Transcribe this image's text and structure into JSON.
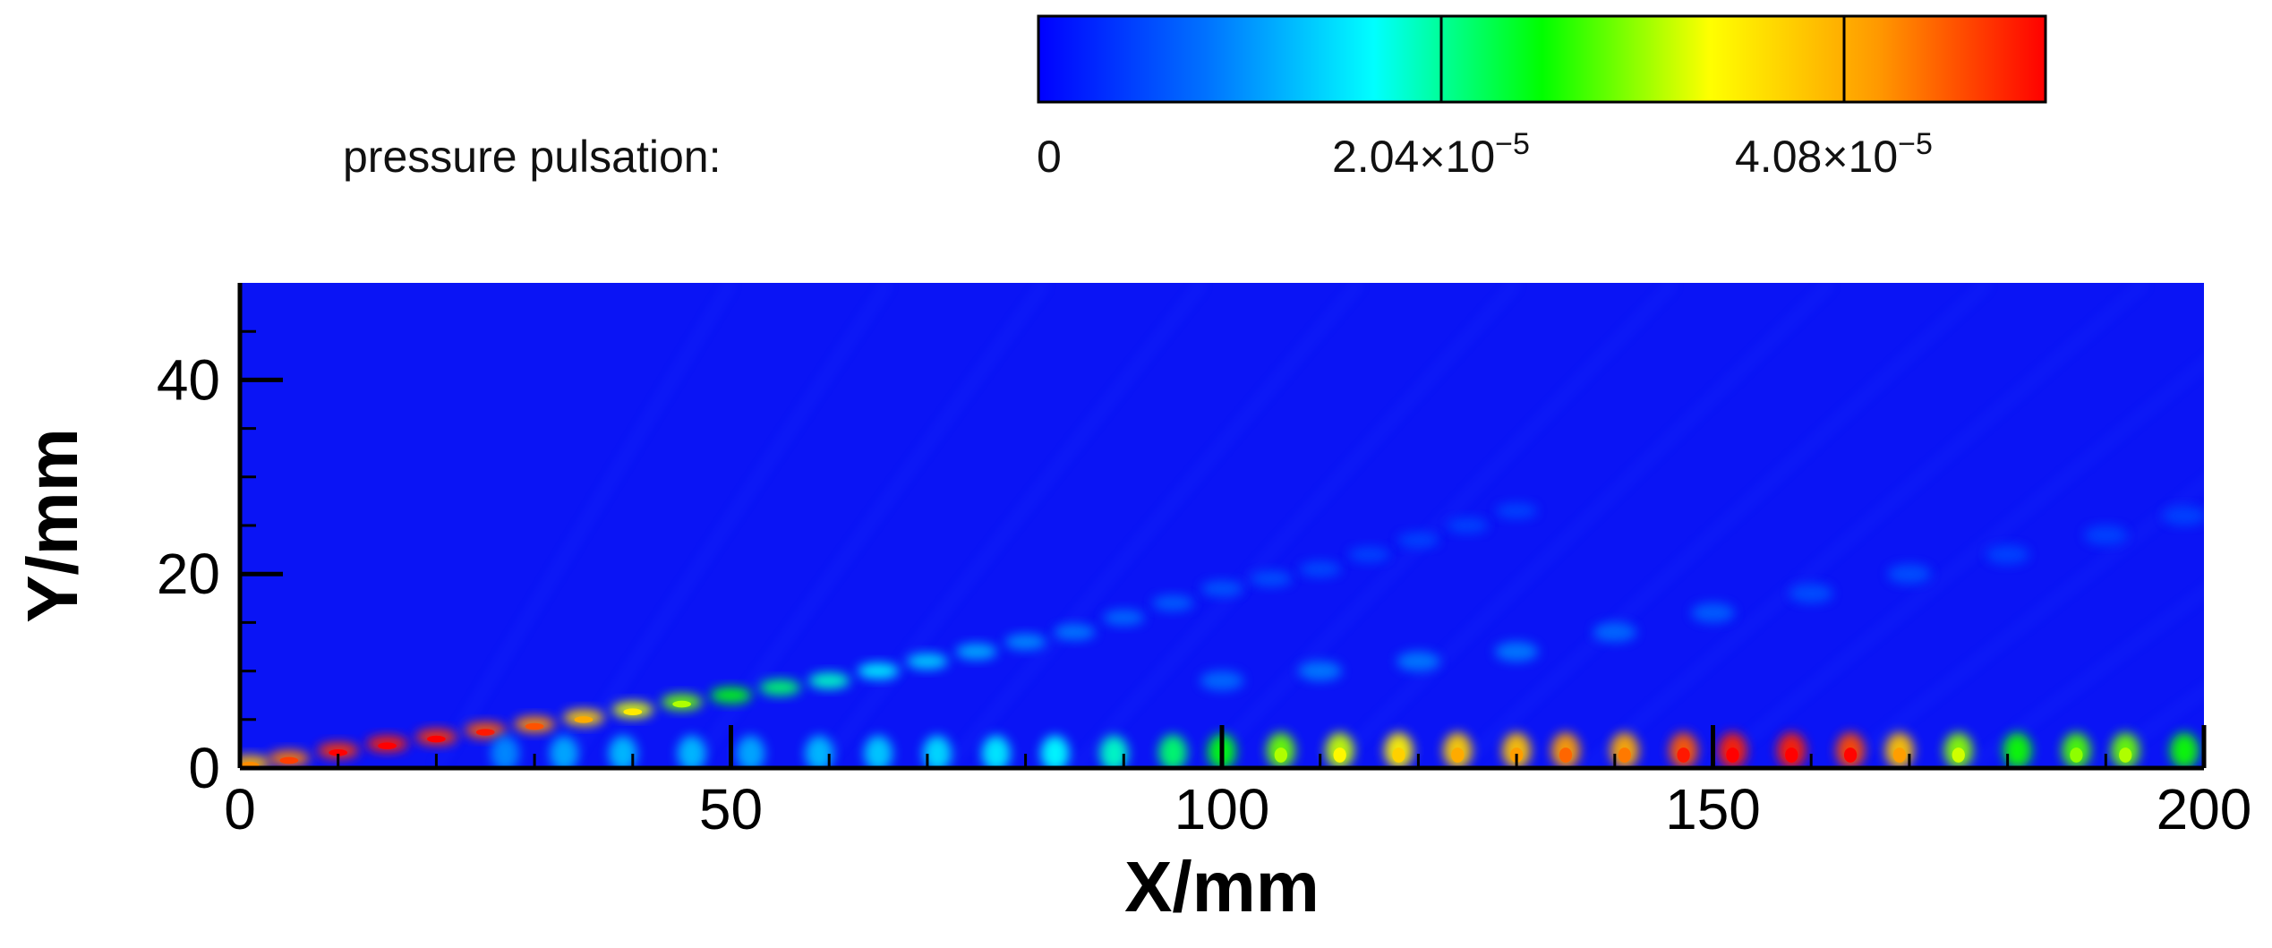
{
  "chart_data": {
    "type": "heatmap",
    "title": "",
    "xlabel": "X/mm",
    "ylabel": "Y/mm",
    "xlim": [
      0,
      200
    ],
    "ylim": [
      0,
      50
    ],
    "x_ticks": [
      0,
      50,
      100,
      150,
      200
    ],
    "x_tick_labels": [
      "0",
      "50",
      "100",
      "150",
      "200"
    ],
    "y_ticks": [
      0,
      20,
      40
    ],
    "y_tick_labels": [
      "0",
      "20",
      "40"
    ],
    "colorbar": {
      "label": "pressure pulsation:",
      "min": 0,
      "max": 5.1e-05,
      "ticks": [
        0,
        2.04e-05,
        4.08e-05
      ],
      "tick_labels": [
        "0",
        "2.04×10",
        "4.08×10"
      ],
      "tick_exponent": "−5",
      "colormap": [
        "#0000ff",
        "#0072ff",
        "#00ffff",
        "#00ff00",
        "#ffff00",
        "#ff9900",
        "#ff0000"
      ],
      "divider_values": [
        2.04e-05,
        4.08e-05
      ]
    },
    "field": {
      "background_value": 0,
      "background_color": "#0a14f5",
      "shear_layer": {
        "description": "oblique band of pressure pulsation cells rising from the wall",
        "points": [
          {
            "x": 1,
            "y": 0.5,
            "value": 4e-05
          },
          {
            "x": 5,
            "y": 1.0,
            "value": 4.4e-05
          },
          {
            "x": 10,
            "y": 1.8,
            "value": 4.8e-05
          },
          {
            "x": 15,
            "y": 2.5,
            "value": 4.9e-05
          },
          {
            "x": 20,
            "y": 3.2,
            "value": 4.8e-05
          },
          {
            "x": 25,
            "y": 3.9,
            "value": 4.6e-05
          },
          {
            "x": 30,
            "y": 4.5,
            "value": 4.3e-05
          },
          {
            "x": 35,
            "y": 5.2,
            "value": 3.8e-05
          },
          {
            "x": 40,
            "y": 6.0,
            "value": 3.3e-05
          },
          {
            "x": 45,
            "y": 6.8,
            "value": 2.9e-05
          },
          {
            "x": 50,
            "y": 7.5,
            "value": 2.5e-05
          },
          {
            "x": 55,
            "y": 8.3,
            "value": 2.2e-05
          },
          {
            "x": 60,
            "y": 9.0,
            "value": 1.9e-05
          },
          {
            "x": 65,
            "y": 10.0,
            "value": 1.6e-05
          },
          {
            "x": 70,
            "y": 11.0,
            "value": 1.4e-05
          },
          {
            "x": 75,
            "y": 12.0,
            "value": 1.2e-05
          },
          {
            "x": 80,
            "y": 13.0,
            "value": 1e-05
          },
          {
            "x": 85,
            "y": 14.0,
            "value": 9e-06
          },
          {
            "x": 90,
            "y": 15.5,
            "value": 8e-06
          },
          {
            "x": 95,
            "y": 17.0,
            "value": 7e-06
          },
          {
            "x": 100,
            "y": 18.5,
            "value": 6.5e-06
          },
          {
            "x": 105,
            "y": 19.5,
            "value": 6e-06
          },
          {
            "x": 110,
            "y": 20.5,
            "value": 5.5e-06
          },
          {
            "x": 115,
            "y": 22.0,
            "value": 5e-06
          },
          {
            "x": 120,
            "y": 23.5,
            "value": 5e-06
          },
          {
            "x": 125,
            "y": 25.0,
            "value": 5e-06
          },
          {
            "x": 130,
            "y": 26.5,
            "value": 5e-06
          }
        ]
      },
      "wall_hotspots": [
        {
          "x": 27,
          "y": 1.5,
          "value": 1e-05
        },
        {
          "x": 33,
          "y": 1.5,
          "value": 1.2e-05
        },
        {
          "x": 39,
          "y": 1.5,
          "value": 1.3e-05
        },
        {
          "x": 46,
          "y": 1.5,
          "value": 1.3e-05
        },
        {
          "x": 52,
          "y": 1.5,
          "value": 1.2e-05
        },
        {
          "x": 59,
          "y": 1.5,
          "value": 1.3e-05
        },
        {
          "x": 65,
          "y": 1.5,
          "value": 1.4e-05
        },
        {
          "x": 71,
          "y": 1.5,
          "value": 1.5e-05
        },
        {
          "x": 77,
          "y": 1.5,
          "value": 1.6e-05
        },
        {
          "x": 83,
          "y": 1.5,
          "value": 1.7e-05
        },
        {
          "x": 89,
          "y": 1.5,
          "value": 1.9e-05
        },
        {
          "x": 95,
          "y": 1.6,
          "value": 2.2e-05
        },
        {
          "x": 100,
          "y": 1.7,
          "value": 2.5e-05
        },
        {
          "x": 106,
          "y": 1.8,
          "value": 2.9e-05
        },
        {
          "x": 112,
          "y": 1.8,
          "value": 3.2e-05
        },
        {
          "x": 118,
          "y": 1.8,
          "value": 3.5e-05
        },
        {
          "x": 124,
          "y": 1.8,
          "value": 3.8e-05
        },
        {
          "x": 130,
          "y": 1.8,
          "value": 3.9e-05
        },
        {
          "x": 135,
          "y": 1.8,
          "value": 4.2e-05
        },
        {
          "x": 141,
          "y": 1.8,
          "value": 4.1e-05
        },
        {
          "x": 147,
          "y": 1.8,
          "value": 4.6e-05
        },
        {
          "x": 152,
          "y": 1.8,
          "value": 4.9e-05
        },
        {
          "x": 158,
          "y": 1.8,
          "value": 4.9e-05
        },
        {
          "x": 164,
          "y": 1.8,
          "value": 4.7e-05
        },
        {
          "x": 169,
          "y": 1.8,
          "value": 3.9e-05
        },
        {
          "x": 175,
          "y": 1.8,
          "value": 3e-05
        },
        {
          "x": 181,
          "y": 1.8,
          "value": 2.6e-05
        },
        {
          "x": 187,
          "y": 1.8,
          "value": 2.8e-05
        },
        {
          "x": 192,
          "y": 1.8,
          "value": 2.9e-05
        },
        {
          "x": 198,
          "y": 1.8,
          "value": 2.6e-05
        }
      ],
      "outer_echo_band": {
        "description": "weaker secondary lobes above the wall row",
        "points": [
          {
            "x": 100,
            "y": 9,
            "value": 8e-06
          },
          {
            "x": 110,
            "y": 10,
            "value": 9e-06
          },
          {
            "x": 120,
            "y": 11,
            "value": 9e-06
          },
          {
            "x": 130,
            "y": 12,
            "value": 9e-06
          },
          {
            "x": 140,
            "y": 14,
            "value": 8e-06
          },
          {
            "x": 150,
            "y": 16,
            "value": 7e-06
          },
          {
            "x": 160,
            "y": 18,
            "value": 6e-06
          },
          {
            "x": 170,
            "y": 20,
            "value": 6e-06
          },
          {
            "x": 180,
            "y": 22,
            "value": 5e-06
          },
          {
            "x": 190,
            "y": 24,
            "value": 5e-06
          },
          {
            "x": 198,
            "y": 26,
            "value": 5e-06
          }
        ]
      }
    }
  }
}
